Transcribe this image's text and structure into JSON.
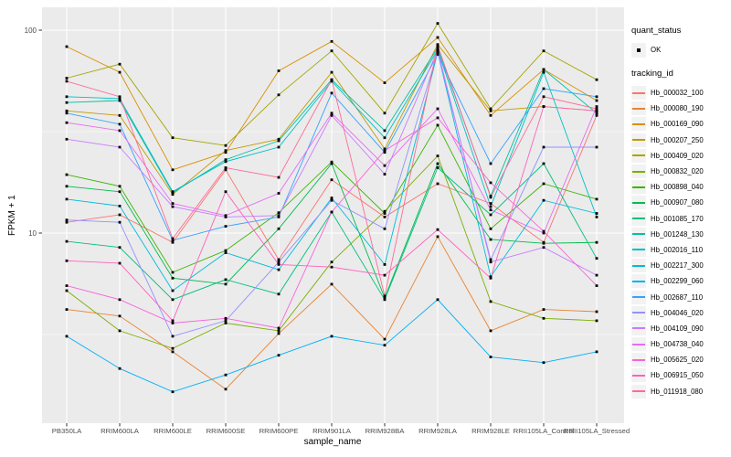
{
  "chart_data": {
    "type": "line",
    "title": "",
    "xlabel": "sample_name",
    "ylabel": "FPKM + 1",
    "y_scale": "log10",
    "grid": true,
    "y_ticks": [
      {
        "label": "100",
        "value": 100
      },
      {
        "label": "10",
        "value": 10
      }
    ],
    "categories": [
      "PB350LA",
      "RRIM600LA",
      "RRIM600LE",
      "RRIM600SE",
      "RRIM600PE",
      "RRIM901LA",
      "RRIM928BA",
      "RRIM928LA",
      "RRIM928LE",
      "RRII105LA_Control",
      "RRII105LA_Stressed"
    ],
    "legend": {
      "position": "right",
      "quant_status": {
        "title": "quant_status",
        "items": [
          {
            "label": "OK",
            "glyph": "point"
          }
        ]
      },
      "tracking_id": {
        "title": "tracking_id"
      }
    },
    "colors": {
      "panel_bg": "#EBEBEB",
      "grid": "#FFFFFF",
      "point": "#000000",
      "axis_text": "#4D4D4D",
      "legend_key_bg": "#F2F2F2"
    },
    "series": [
      {
        "tracking_id": "Hb_000032_100",
        "color": "#F8766D",
        "values": [
          11.3,
          12.3,
          9.0,
          20.5,
          7.4,
          18.3,
          12.0,
          17.5,
          14.0,
          9.0,
          38
        ]
      },
      {
        "tracking_id": "Hb_000080_190",
        "color": "#EA8331",
        "values": [
          4.2,
          3.9,
          2.6,
          1.7,
          3.2,
          5.6,
          3.0,
          9.6,
          3.3,
          4.2,
          4.1
        ]
      },
      {
        "tracking_id": "Hb_000169_090",
        "color": "#D89000",
        "values": [
          83,
          62,
          20.5,
          25,
          63,
          88,
          55,
          92,
          38,
          64,
          45
        ]
      },
      {
        "tracking_id": "Hb_000207_250",
        "color": "#C09B00",
        "values": [
          40,
          38,
          15.5,
          25.5,
          29,
          62,
          26,
          85,
          40,
          42,
          40
        ]
      },
      {
        "tracking_id": "Hb_000409_020",
        "color": "#A3A500",
        "values": [
          58,
          68,
          29.5,
          27,
          48,
          79,
          39,
          108,
          41,
          79,
          57
        ]
      },
      {
        "tracking_id": "Hb_000832_020",
        "color": "#7CAE00",
        "values": [
          5.2,
          3.3,
          2.7,
          3.6,
          3.3,
          7.2,
          12.8,
          24,
          4.6,
          3.8,
          3.7
        ]
      },
      {
        "tracking_id": "Hb_000898_040",
        "color": "#39B600",
        "values": [
          19.4,
          17,
          6.4,
          8.2,
          12.6,
          22.4,
          12.5,
          34,
          10.5,
          17.5,
          14.7
        ]
      },
      {
        "tracking_id": "Hb_000907_080",
        "color": "#00BB4E",
        "values": [
          17,
          16,
          6.0,
          5.6,
          10.5,
          22,
          4.8,
          22,
          9.3,
          8.9,
          9.0
        ]
      },
      {
        "tracking_id": "Hb_001085_170",
        "color": "#00BF7D",
        "values": [
          9.1,
          8.5,
          4.7,
          5.9,
          5.0,
          12.7,
          4.7,
          21,
          12.3,
          22,
          7.5
        ]
      },
      {
        "tracking_id": "Hb_001248_130",
        "color": "#00C1A3",
        "values": [
          44,
          45,
          15.8,
          23,
          28.5,
          57,
          32,
          82,
          15.2,
          64,
          39
        ]
      },
      {
        "tracking_id": "Hb_002016_110",
        "color": "#00BFC4",
        "values": [
          47,
          46,
          16,
          22.5,
          26.5,
          56,
          29.5,
          80,
          13.5,
          62,
          12
        ]
      },
      {
        "tracking_id": "Hb_002217_300",
        "color": "#00BBDA",
        "values": [
          14.7,
          13.6,
          5.2,
          8.0,
          6.6,
          14.9,
          7.0,
          78,
          6.1,
          14.5,
          12.5
        ]
      },
      {
        "tracking_id": "Hb_002299_060",
        "color": "#00B0F6",
        "values": [
          3.1,
          2.15,
          1.65,
          2.0,
          2.5,
          3.1,
          2.8,
          4.7,
          2.45,
          2.3,
          2.6
        ]
      },
      {
        "tracking_id": "Hb_002687_110",
        "color": "#35A2FF",
        "values": [
          39,
          34.4,
          9.2,
          10.8,
          12,
          49,
          25,
          76,
          22,
          51.5,
          47
        ]
      },
      {
        "tracking_id": "Hb_004046_020",
        "color": "#9590FF",
        "values": [
          11.6,
          11.3,
          3.1,
          3.7,
          7.2,
          14.5,
          10.5,
          78,
          7.4,
          26.5,
          26.5
        ]
      },
      {
        "tracking_id": "Hb_004109_090",
        "color": "#C77CFF",
        "values": [
          29,
          26.5,
          13.5,
          12,
          12.2,
          38,
          19.5,
          80,
          7.2,
          8.5,
          6.2
        ]
      },
      {
        "tracking_id": "Hb_004738_040",
        "color": "#E76BF3",
        "values": [
          35,
          32,
          14,
          12.2,
          15.7,
          39,
          21.5,
          41,
          13,
          10,
          42
        ]
      },
      {
        "tracking_id": "Hb_005625_020",
        "color": "#FA62DB",
        "values": [
          5.5,
          4.7,
          3.6,
          3.8,
          3.4,
          12.7,
          25.5,
          37,
          17.7,
          10.2,
          5.5
        ]
      },
      {
        "tracking_id": "Hb_006915_050",
        "color": "#FF62BC",
        "values": [
          7.3,
          7.1,
          3.7,
          16,
          7.0,
          6.8,
          6.2,
          10.4,
          6.0,
          42,
          40
        ]
      },
      {
        "tracking_id": "Hb_011918_080",
        "color": "#FF6A98",
        "values": [
          56,
          47,
          9.4,
          21,
          18.8,
          57,
          4.9,
          84,
          15,
          47,
          41
        ]
      }
    ]
  }
}
